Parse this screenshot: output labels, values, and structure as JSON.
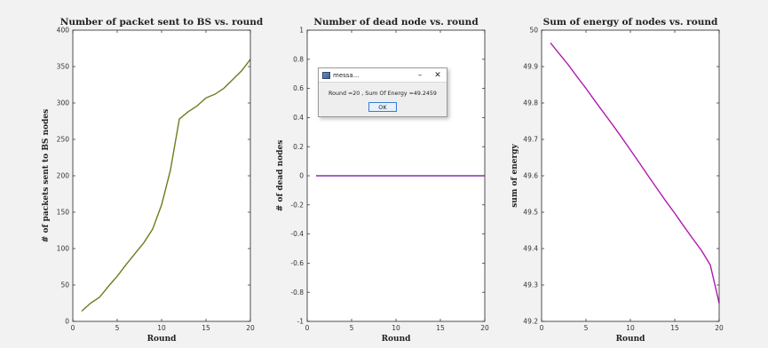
{
  "dialog": {
    "title": "messa...",
    "minimize_glyph": "–",
    "close_glyph": "✕",
    "message": "Round =20 , Sum Of Energy =49.2459",
    "ok_label": "OK"
  },
  "colors": {
    "packets_line": "#6b7d1c",
    "dead_line": "#8b2db0",
    "energy_line": "#b01ab0"
  },
  "chart_data": [
    {
      "type": "line",
      "title": "Number of packet sent to BS vs. round",
      "xlabel": "Round",
      "ylabel": "# of packets sent to BS nodes",
      "xlim": [
        0,
        20
      ],
      "ylim": [
        0,
        400
      ],
      "xticks": [
        0,
        5,
        10,
        15,
        20
      ],
      "yticks": [
        0,
        50,
        100,
        150,
        200,
        250,
        300,
        350,
        400
      ],
      "grid": false,
      "x": [
        1,
        2,
        3,
        4,
        5,
        6,
        7,
        8,
        9,
        10,
        11,
        12,
        13,
        14,
        15,
        16,
        17,
        18,
        19,
        20
      ],
      "y": [
        14,
        25,
        33,
        48,
        62,
        78,
        93,
        108,
        127,
        160,
        208,
        278,
        288,
        296,
        307,
        312,
        320,
        332,
        344,
        360
      ]
    },
    {
      "type": "line",
      "title": "Number of dead node vs. round",
      "xlabel": "Round",
      "ylabel": "# of dead nodes",
      "xlim": [
        0,
        20
      ],
      "ylim": [
        -1,
        1
      ],
      "xticks": [
        0,
        5,
        10,
        15,
        20
      ],
      "yticks": [
        -1,
        -0.8,
        -0.6,
        -0.4,
        -0.2,
        0,
        0.2,
        0.4,
        0.6,
        0.8,
        1
      ],
      "grid": false,
      "x": [
        1,
        20
      ],
      "y": [
        0,
        0
      ]
    },
    {
      "type": "line",
      "title": "Sum of energy of nodes vs. round",
      "xlabel": "Round",
      "ylabel": "sum of energy",
      "xlim": [
        0,
        20
      ],
      "ylim": [
        49.2,
        50
      ],
      "xticks": [
        0,
        5,
        10,
        15,
        20
      ],
      "yticks": [
        49.2,
        49.3,
        49.4,
        49.5,
        49.6,
        49.7,
        49.8,
        49.9,
        50
      ],
      "grid": false,
      "x": [
        1,
        2,
        3,
        4,
        5,
        6,
        7,
        8,
        9,
        10,
        11,
        12,
        13,
        14,
        15,
        16,
        17,
        18,
        19,
        20
      ],
      "y": [
        49.965,
        49.935,
        49.905,
        49.872,
        49.84,
        49.806,
        49.773,
        49.74,
        49.706,
        49.671,
        49.636,
        49.6,
        49.565,
        49.53,
        49.497,
        49.462,
        49.428,
        49.395,
        49.355,
        49.25
      ]
    }
  ]
}
